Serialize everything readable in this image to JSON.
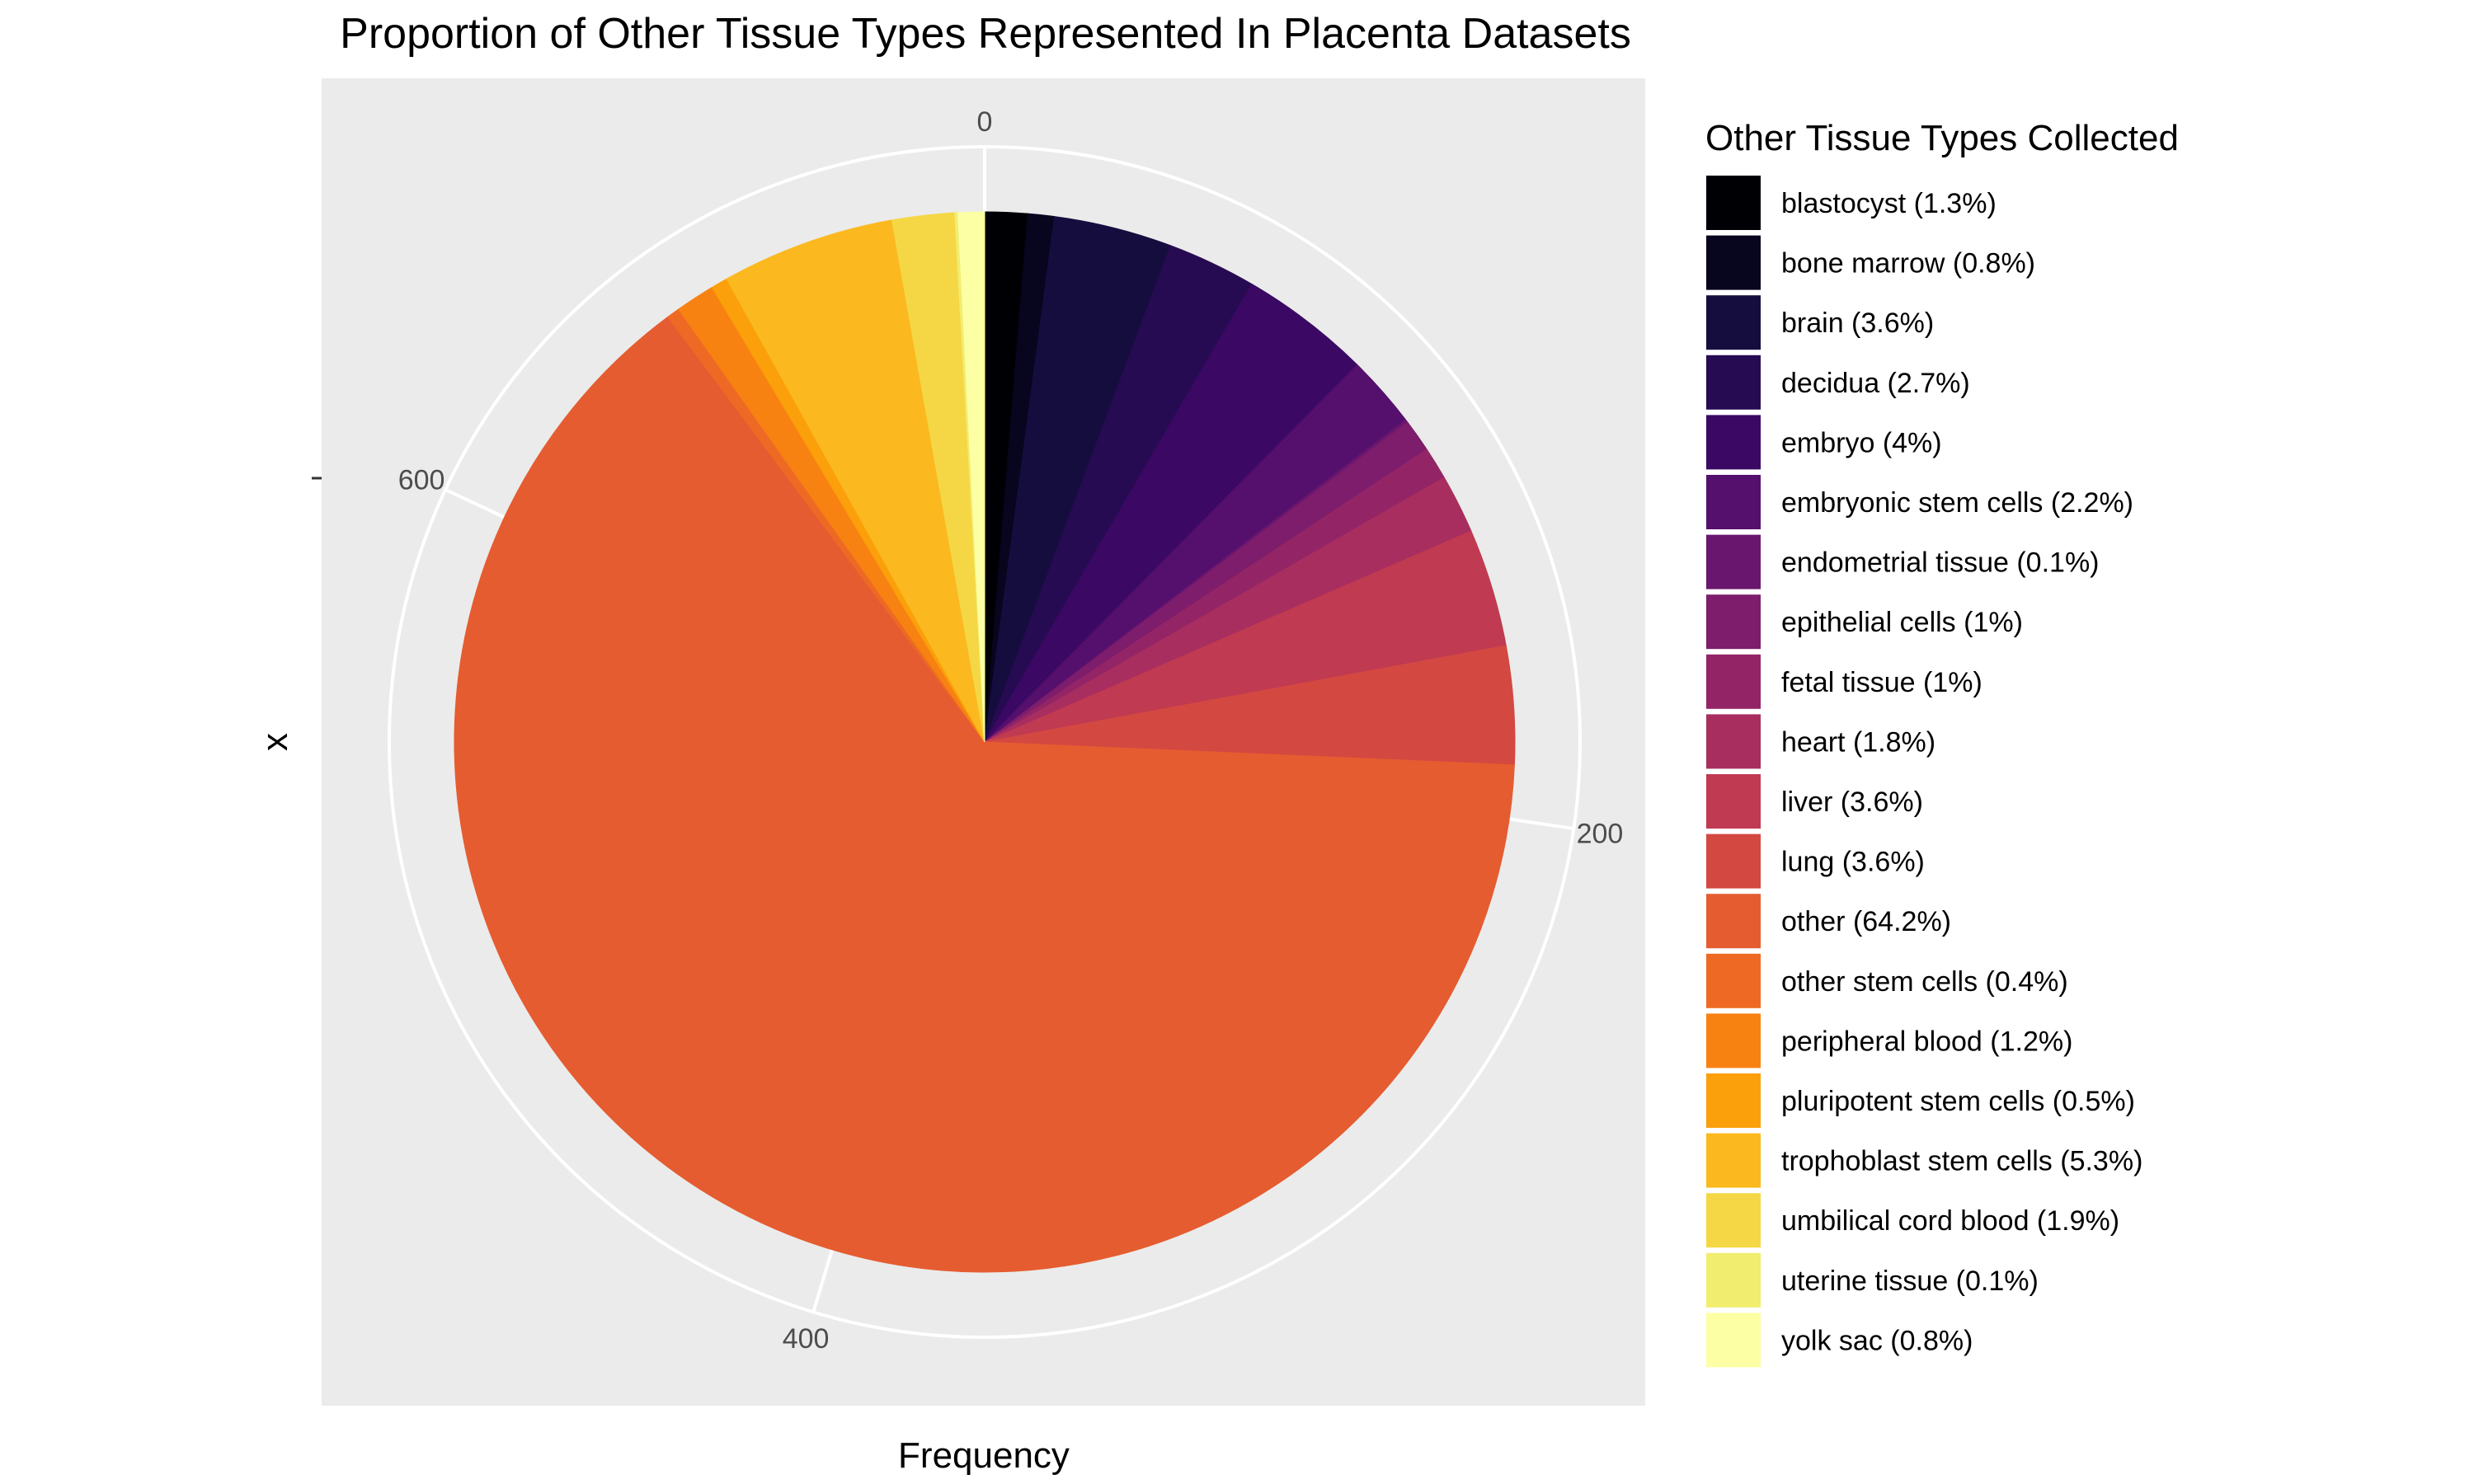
{
  "chart_data": {
    "type": "pie",
    "title": "Proportion of Other Tissue Types Represented In Placenta Datasets",
    "xlabel": "Frequency",
    "ylabel": "x",
    "radial_ticks": [
      0,
      200,
      400,
      600
    ],
    "radial_max": 732,
    "grid": true,
    "legend_title": "Other Tissue Types Collected",
    "legend_position": "right",
    "slices": [
      {
        "label": "blastocyst (1.3%)",
        "value": 9.5,
        "color": "#000004"
      },
      {
        "label": "bone marrow (0.8%)",
        "value": 5.9,
        "color": "#08051E"
      },
      {
        "label": "brain (3.6%)",
        "value": 26.4,
        "color": "#160D3F"
      },
      {
        "label": "decidua (2.7%)",
        "value": 19.8,
        "color": "#270B52"
      },
      {
        "label": "embryo (4%)",
        "value": 29.3,
        "color": "#3B0964"
      },
      {
        "label": "embryonic stem cells (2.2%)",
        "value": 16.1,
        "color": "#550F6D"
      },
      {
        "label": "endometrial tissue (0.1%)",
        "value": 0.7,
        "color": "#69166E"
      },
      {
        "label": "epithelial cells (1%)",
        "value": 7.3,
        "color": "#7D1D6C"
      },
      {
        "label": "fetal tissue (1%)",
        "value": 7.3,
        "color": "#932567"
      },
      {
        "label": "heart (1.8%)",
        "value": 13.2,
        "color": "#A82E5F"
      },
      {
        "label": "liver (3.6%)",
        "value": 26.4,
        "color": "#C03A51"
      },
      {
        "label": "lung (3.6%)",
        "value": 26.4,
        "color": "#D44842"
      },
      {
        "label": "other (64.2%)",
        "value": 470,
        "color": "#E55C30"
      },
      {
        "label": "other stem cells (0.4%)",
        "value": 2.9,
        "color": "#EE6A24"
      },
      {
        "label": "peripheral blood (1.2%)",
        "value": 8.8,
        "color": "#F78212"
      },
      {
        "label": "pluripotent stem cells (0.5%)",
        "value": 3.7,
        "color": "#FBA00A"
      },
      {
        "label": "trophoblast stem cells (5.3%)",
        "value": 38.8,
        "color": "#FBB91F"
      },
      {
        "label": "umbilical cord blood (1.9%)",
        "value": 13.9,
        "color": "#F5D745"
      },
      {
        "label": "uterine tissue (0.1%)",
        "value": 0.7,
        "color": "#F1ED6F"
      },
      {
        "label": "yolk sac (0.8%)",
        "value": 5.9,
        "color": "#FCFFA4"
      }
    ]
  },
  "colors": {
    "panel_background": "#EBEBEB",
    "grid": "#FFFFFF",
    "tick_text": "#4D4D4D",
    "text": "#000000"
  }
}
